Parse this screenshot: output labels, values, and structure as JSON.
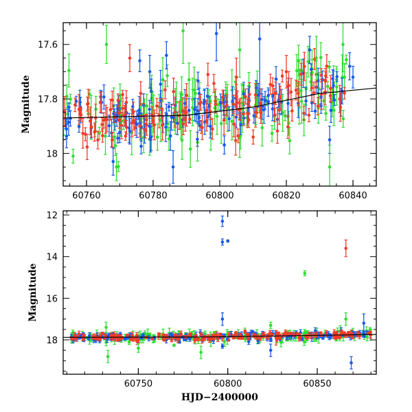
{
  "chart_data": [
    {
      "type": "scatter",
      "title": "",
      "xlabel": "",
      "ylabel": "Magnitude",
      "xlim": [
        60753,
        60847
      ],
      "ylim": [
        17.52,
        18.12
      ],
      "y_inverted": true,
      "x_ticks": [
        60760,
        60780,
        60800,
        60820,
        60840
      ],
      "y_ticks_labeled": [
        17.6,
        17.8,
        18
      ],
      "y_tick_labels": [
        "17.6",
        "17.8",
        "18"
      ],
      "colors": {
        "blue": "#1a5ae6",
        "green": "#33dd33",
        "red": "#f03c28",
        "model": "#000000"
      },
      "model_curve": {
        "x": [
          60753,
          60790,
          60810,
          60830,
          60847
        ],
        "y": [
          17.87,
          17.86,
          17.83,
          17.78,
          17.76
        ]
      },
      "series_summary": [
        {
          "color": "blue",
          "sample_points": [
            {
              "x": 60768,
              "y": 18.03,
              "err": 0.05
            },
            {
              "x": 60776,
              "y": 17.66,
              "err": 0.04
            },
            {
              "x": 60779,
              "y": 17.7,
              "err": 0.06
            },
            {
              "x": 60784,
              "y": 17.64,
              "err": 0.05
            },
            {
              "x": 60786,
              "y": 18.05,
              "err": 0.06
            },
            {
              "x": 60799,
              "y": 17.56,
              "err": 0.1
            },
            {
              "x": 60812,
              "y": 17.58,
              "err": 0.2
            },
            {
              "x": 60827,
              "y": 17.62,
              "err": 0.05
            },
            {
              "x": 60833,
              "y": 17.95,
              "err": 0.05
            },
            {
              "x": 60839,
              "y": 17.68,
              "err": 0.05
            },
            {
              "x": 60840,
              "y": 17.72,
              "err": 0.04
            }
          ]
        },
        {
          "color": "green",
          "sample_points": [
            {
              "x": 60766,
              "y": 17.6,
              "err": 0.07
            },
            {
              "x": 60769,
              "y": 18.05,
              "err": 0.05
            },
            {
              "x": 60789,
              "y": 17.55,
              "err": 0.12
            },
            {
              "x": 60806,
              "y": 17.62,
              "err": 0.1
            },
            {
              "x": 60829,
              "y": 17.65,
              "err": 0.08
            },
            {
              "x": 60833,
              "y": 18.05,
              "err": 0.08
            },
            {
              "x": 60837,
              "y": 17.6,
              "err": 0.1
            }
          ]
        },
        {
          "color": "red",
          "sample_points": [
            {
              "x": 60773,
              "y": 17.65,
              "err": 0.05
            },
            {
              "x": 60776,
              "y": 17.9,
              "err": 0.04
            },
            {
              "x": 60790,
              "y": 17.85,
              "err": 0.05
            },
            {
              "x": 60805,
              "y": 17.72,
              "err": 0.07
            },
            {
              "x": 60820,
              "y": 17.7,
              "err": 0.06
            },
            {
              "x": 60836,
              "y": 17.8,
              "err": 0.05
            }
          ]
        }
      ],
      "scatter_baseline": "bulk of points lie between 17.75 and 17.95 with a slow brightening toward later dates"
    },
    {
      "type": "scatter",
      "title": "",
      "xlabel": "HJD−2400000",
      "ylabel": "Magnitude",
      "xlim": [
        60708,
        60883
      ],
      "ylim": [
        11.8,
        19.65
      ],
      "y_inverted": true,
      "x_ticks": [
        60750,
        60800,
        60850
      ],
      "y_ticks_labeled": [
        12,
        14,
        16,
        18
      ],
      "y_tick_labels": [
        "12",
        "14",
        "16",
        "18"
      ],
      "model_curve": {
        "x": [
          60708,
          60790,
          60883
        ],
        "y": [
          17.88,
          17.86,
          17.74
        ]
      },
      "outliers": [
        {
          "color": "blue",
          "x": 60797,
          "y": 12.3,
          "err": 0.25
        },
        {
          "color": "blue",
          "x": 60797,
          "y": 13.3,
          "err": 0.15
        },
        {
          "color": "blue",
          "x": 60800,
          "y": 13.25,
          "err": 0.05
        },
        {
          "color": "red",
          "x": 60866,
          "y": 13.6,
          "err": 0.4
        },
        {
          "color": "green",
          "x": 60843,
          "y": 14.8,
          "err": 0.12
        },
        {
          "color": "blue",
          "x": 60797,
          "y": 17.0,
          "err": 0.3
        },
        {
          "color": "blue",
          "x": 60876,
          "y": 17.2,
          "err": 0.45
        },
        {
          "color": "green",
          "x": 60732,
          "y": 17.4,
          "err": 0.25
        },
        {
          "color": "green",
          "x": 60824,
          "y": 17.3,
          "err": 0.15
        },
        {
          "color": "green",
          "x": 60866,
          "y": 17.0,
          "err": 0.3
        },
        {
          "color": "green",
          "x": 60733,
          "y": 18.8,
          "err": 0.3
        },
        {
          "color": "green",
          "x": 60785,
          "y": 18.6,
          "err": 0.3
        },
        {
          "color": "green",
          "x": 60750,
          "y": 18.4,
          "err": 0.2
        },
        {
          "color": "blue",
          "x": 60797,
          "y": 18.3,
          "err": 0.1
        },
        {
          "color": "blue",
          "x": 60824,
          "y": 18.5,
          "err": 0.3
        },
        {
          "color": "blue",
          "x": 60869,
          "y": 19.1,
          "err": 0.3
        },
        {
          "color": "red",
          "x": 60827,
          "y": 17.9,
          "err": 0.35
        }
      ],
      "scatter_baseline": "dense band of points near magnitude 17.85 from about 60712 to 60880"
    }
  ]
}
